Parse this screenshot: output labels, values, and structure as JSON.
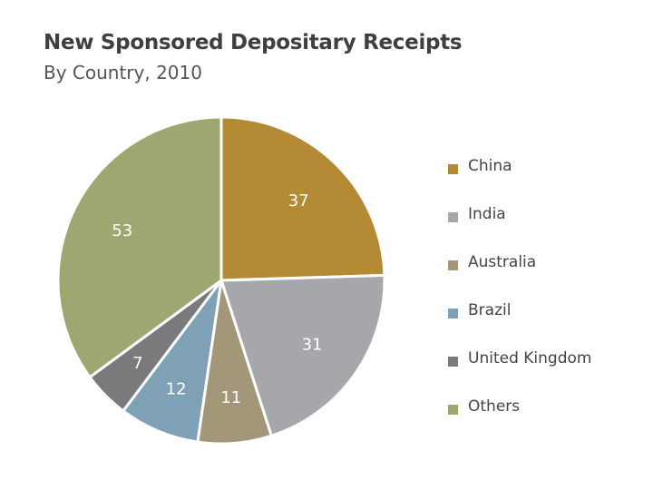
{
  "chart_data": {
    "type": "pie",
    "title": "New Sponsored Depositary Receipts",
    "subtitle": "By Country, 2010",
    "categories": [
      "China",
      "India",
      "Australia",
      "Brazil",
      "United Kingdom",
      "Others"
    ],
    "values": [
      37,
      31,
      11,
      12,
      7,
      53
    ],
    "colors": [
      "#b58a35",
      "#a6a7ab",
      "#a3977a",
      "#7fa1b6",
      "#7a7a7c",
      "#9ea672"
    ],
    "legend_position": "right"
  }
}
